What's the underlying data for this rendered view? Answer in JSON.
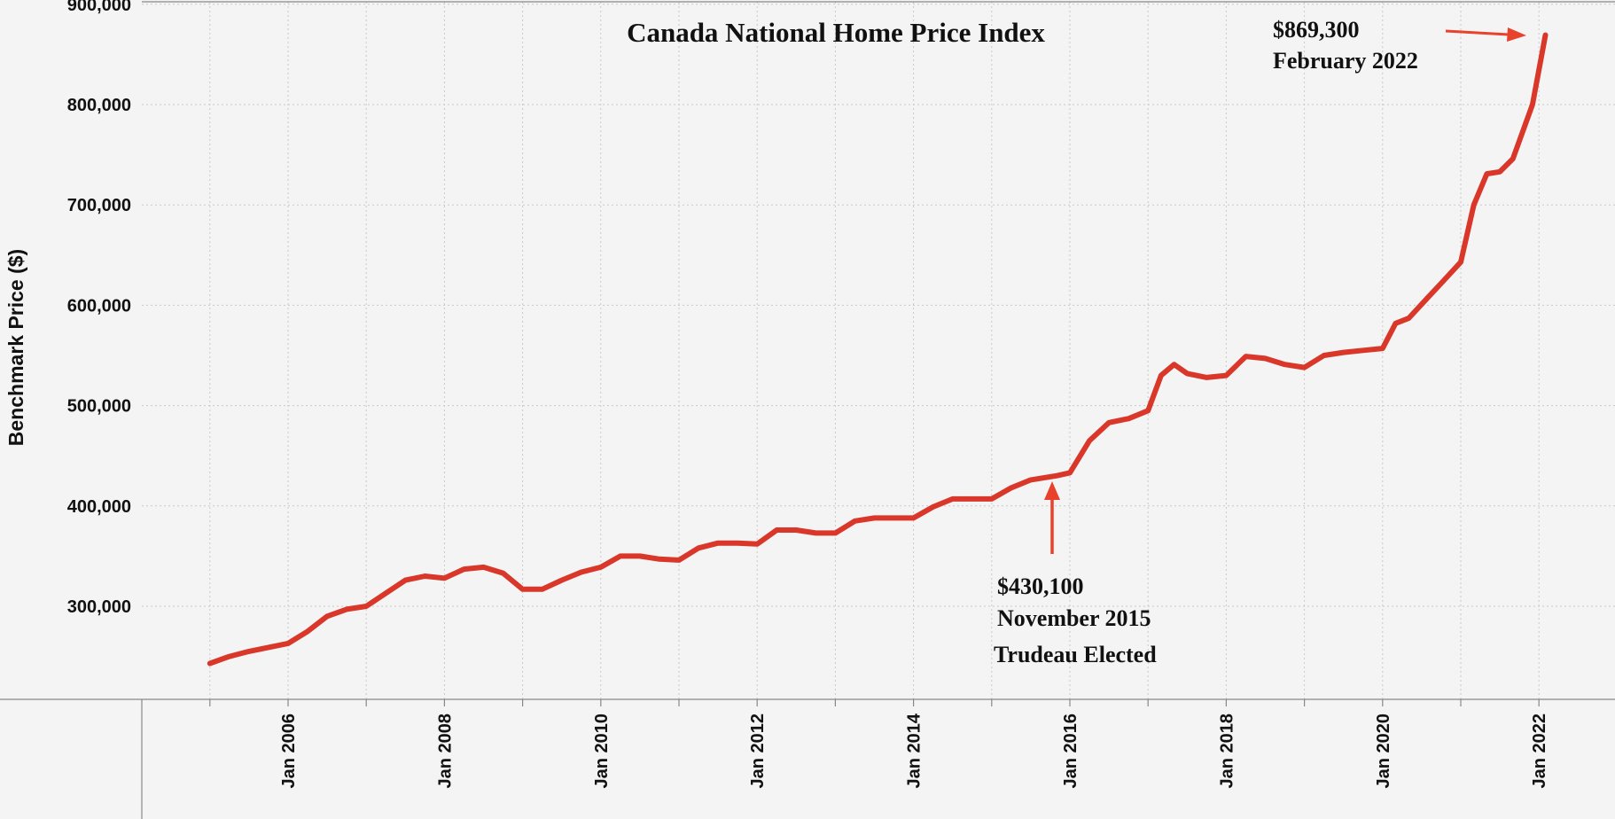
{
  "chart_data": {
    "type": "line",
    "title": "Canada National Home Price Index",
    "xlabel": "",
    "ylabel": "Benchmark Price ($)",
    "ylim": [
      210000,
      910000
    ],
    "y_ticks": [
      {
        "value": 300000,
        "label": "300,000"
      },
      {
        "value": 400000,
        "label": "400,000"
      },
      {
        "value": 500000,
        "label": "500,000"
      },
      {
        "value": 600000,
        "label": "600,000"
      },
      {
        "value": 700000,
        "label": "700,000"
      },
      {
        "value": 800000,
        "label": "800,000"
      },
      {
        "value": 900000,
        "label": "900,000"
      }
    ],
    "x_range": [
      "2004-01",
      "2022-07"
    ],
    "x_ticks": [
      {
        "value": "2006-01",
        "label": "Jan 2006"
      },
      {
        "value": "2008-01",
        "label": "Jan 2008"
      },
      {
        "value": "2010-01",
        "label": "Jan 2010"
      },
      {
        "value": "2012-01",
        "label": "Jan 2012"
      },
      {
        "value": "2014-01",
        "label": "Jan 2014"
      },
      {
        "value": "2016-01",
        "label": "Jan 2016"
      },
      {
        "value": "2018-01",
        "label": "Jan 2018"
      },
      {
        "value": "2020-01",
        "label": "Jan 2020"
      },
      {
        "value": "2022-01",
        "label": "Jan 2022"
      }
    ],
    "grid": true,
    "line_color": "#d9372a",
    "annotation_color": "#e8412c",
    "series": [
      {
        "x": [
          "2005-01",
          "2005-04",
          "2005-07",
          "2005-10",
          "2006-01",
          "2006-04",
          "2006-07",
          "2006-10",
          "2007-01",
          "2007-04",
          "2007-07",
          "2007-10",
          "2008-01",
          "2008-04",
          "2008-07",
          "2008-10",
          "2009-01",
          "2009-04",
          "2009-07",
          "2009-10",
          "2010-01",
          "2010-04",
          "2010-07",
          "2010-10",
          "2011-01",
          "2011-04",
          "2011-07",
          "2011-10",
          "2012-01",
          "2012-04",
          "2012-07",
          "2012-10",
          "2013-01",
          "2013-04",
          "2013-07",
          "2013-10",
          "2014-01",
          "2014-04",
          "2014-07",
          "2014-10",
          "2015-01",
          "2015-04",
          "2015-07",
          "2015-11",
          "2016-01",
          "2016-04",
          "2016-07",
          "2016-10",
          "2017-01",
          "2017-03",
          "2017-05",
          "2017-07",
          "2017-10",
          "2018-01",
          "2018-04",
          "2018-07",
          "2018-10",
          "2019-01",
          "2019-04",
          "2019-07",
          "2019-10",
          "2020-01",
          "2020-03",
          "2020-05",
          "2020-08",
          "2020-10",
          "2021-01",
          "2021-03",
          "2021-05",
          "2021-07",
          "2021-09",
          "2021-12",
          "2022-02"
        ],
        "values": [
          243000,
          250000,
          255000,
          259000,
          263000,
          275000,
          290000,
          297000,
          300000,
          313000,
          326000,
          330000,
          328000,
          337000,
          339000,
          333000,
          317000,
          317000,
          326000,
          334000,
          339000,
          350000,
          350000,
          347000,
          346000,
          358000,
          363000,
          363000,
          362000,
          376000,
          376000,
          373000,
          373000,
          385000,
          388000,
          388000,
          388000,
          399000,
          407000,
          407000,
          407000,
          418000,
          426000,
          430100,
          433000,
          465000,
          483000,
          487000,
          495000,
          530000,
          541000,
          532000,
          528000,
          530000,
          549000,
          547000,
          541000,
          538000,
          550000,
          553000,
          555000,
          557000,
          582000,
          587000,
          608000,
          622000,
          643000,
          700000,
          731000,
          733000,
          746000,
          800000,
          869300
        ]
      }
    ],
    "annotations": [
      {
        "id": "peak",
        "value_label": "$869,300",
        "date_label": "February 2022"
      },
      {
        "id": "election",
        "value_label": "$430,100",
        "date_label": "November 2015",
        "note": "Trudeau Elected"
      }
    ]
  }
}
